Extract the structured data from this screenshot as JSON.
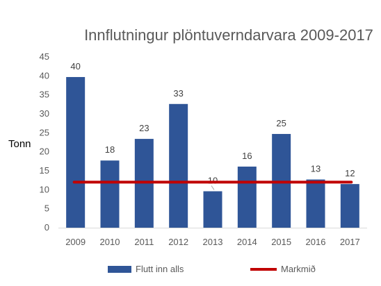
{
  "chart_data": {
    "type": "bar",
    "title": "Innflutningur plöntuverndarvara 2009-2017",
    "ylabel": "Tonn",
    "xlabel": "",
    "ylim": [
      0,
      45
    ],
    "yticks": [
      0,
      5,
      10,
      15,
      20,
      25,
      30,
      35,
      40,
      45
    ],
    "categories": [
      "2009",
      "2010",
      "2011",
      "2012",
      "2013",
      "2014",
      "2015",
      "2016",
      "2017"
    ],
    "series": [
      {
        "name": "Flutt inn alls",
        "type": "bar",
        "color": "#2f5597",
        "values": [
          39.7,
          17.7,
          23.4,
          32.6,
          9.6,
          16.1,
          24.7,
          12.7,
          11.5
        ],
        "labels": [
          "40",
          "18",
          "23",
          "33",
          "10",
          "16",
          "25",
          "13",
          "12"
        ]
      },
      {
        "name": "Markmið",
        "type": "line",
        "color": "#c00000",
        "value": 12
      }
    ],
    "grid": false,
    "legend_position": "bottom"
  }
}
